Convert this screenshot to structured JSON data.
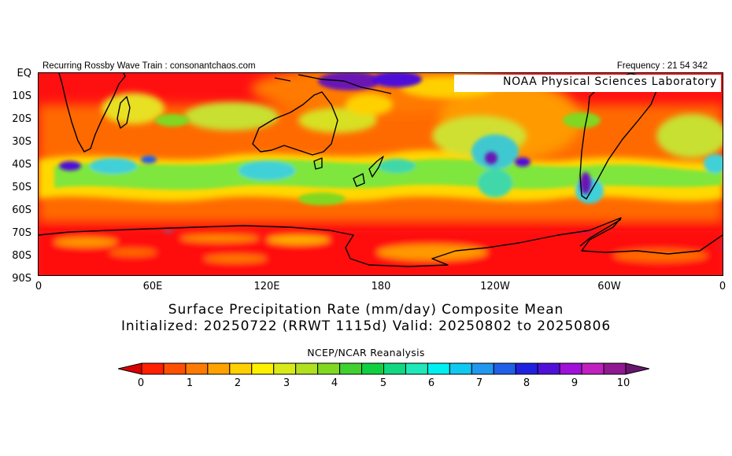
{
  "header": {
    "left_text": "Recurring Rossby Wave Train : consonantchaos.com",
    "right_text": "Frequency : 21 54 342"
  },
  "map": {
    "badge": "NOAA Physical Sciences Laboratory",
    "colors": {
      "dry": "#ff1010",
      "mid": "#7ee63c",
      "wet": "#3fd0d8",
      "heavy": "#6a14b4",
      "coast": "#000000"
    },
    "y_ticks": [
      "EQ",
      "10S",
      "20S",
      "30S",
      "40S",
      "50S",
      "60S",
      "70S",
      "80S",
      "90S"
    ],
    "x_ticks": [
      "0",
      "60E",
      "120E",
      "180",
      "120W",
      "60W",
      "0"
    ]
  },
  "titles": {
    "line1": "Surface Precipitation Rate (mm/day) Composite Mean",
    "line2": "Initialized: 20250722 (RRWT 1115d) Valid: 20250802 to 20250806",
    "source": "NCEP/NCAR Reanalysis"
  },
  "colorbar": {
    "colors": [
      "#d80000",
      "#ff2000",
      "#ff5000",
      "#ff7a00",
      "#ffa200",
      "#ffd000",
      "#fff000",
      "#d8ea18",
      "#b0e020",
      "#80d820",
      "#40d030",
      "#10d040",
      "#10d880",
      "#20e8b8",
      "#00f0f0",
      "#10c8f0",
      "#2098f0",
      "#2060e8",
      "#2020e0",
      "#5010d8",
      "#a010d8",
      "#c020c0",
      "#901890",
      "#6a1470"
    ],
    "labels": [
      "0",
      "1",
      "2",
      "3",
      "4",
      "5",
      "6",
      "7",
      "8",
      "9",
      "10"
    ]
  }
}
